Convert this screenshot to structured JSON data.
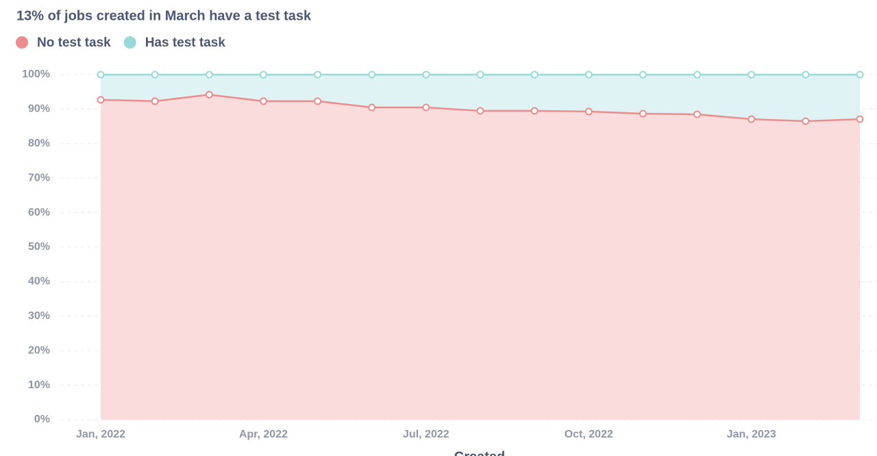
{
  "chart_data": {
    "type": "stacked-area",
    "title": "13% of jobs created in March have a test task",
    "x_label": "Created",
    "categories": [
      "Jan, 2022",
      null,
      null,
      "Apr, 2022",
      null,
      null,
      "Jul, 2022",
      null,
      null,
      "Oct, 2022",
      null,
      null,
      "Jan, 2023",
      null,
      null
    ],
    "series": [
      {
        "name": "No test task",
        "color": "#ed8c8c",
        "fill": "#fadcdc",
        "values": [
          92.7,
          92.3,
          94.2,
          92.3,
          92.3,
          90.5,
          90.5,
          89.5,
          89.5,
          89.3,
          88.7,
          88.5,
          87.1,
          86.5,
          87.1
        ]
      },
      {
        "name": "Has test task",
        "color": "#98d9d9",
        "fill": "#e0f3f4",
        "values": [
          7.3,
          7.7,
          5.8,
          7.7,
          7.7,
          9.5,
          9.5,
          10.5,
          10.5,
          10.7,
          11.3,
          11.5,
          12.9,
          13.5,
          12.9
        ]
      }
    ],
    "ylim": [
      0,
      100
    ],
    "yticks": [
      {
        "value": 0,
        "label": "0%"
      },
      {
        "value": 10,
        "label": "10%"
      },
      {
        "value": 20,
        "label": "20%"
      },
      {
        "value": 30,
        "label": "30%"
      },
      {
        "value": 40,
        "label": "40%"
      },
      {
        "value": 50,
        "label": "50%"
      },
      {
        "value": 60,
        "label": "60%"
      },
      {
        "value": 70,
        "label": "70%"
      },
      {
        "value": 80,
        "label": "80%"
      },
      {
        "value": 90,
        "label": "90%"
      },
      {
        "value": 100,
        "label": "100%"
      }
    ],
    "grid": true
  }
}
